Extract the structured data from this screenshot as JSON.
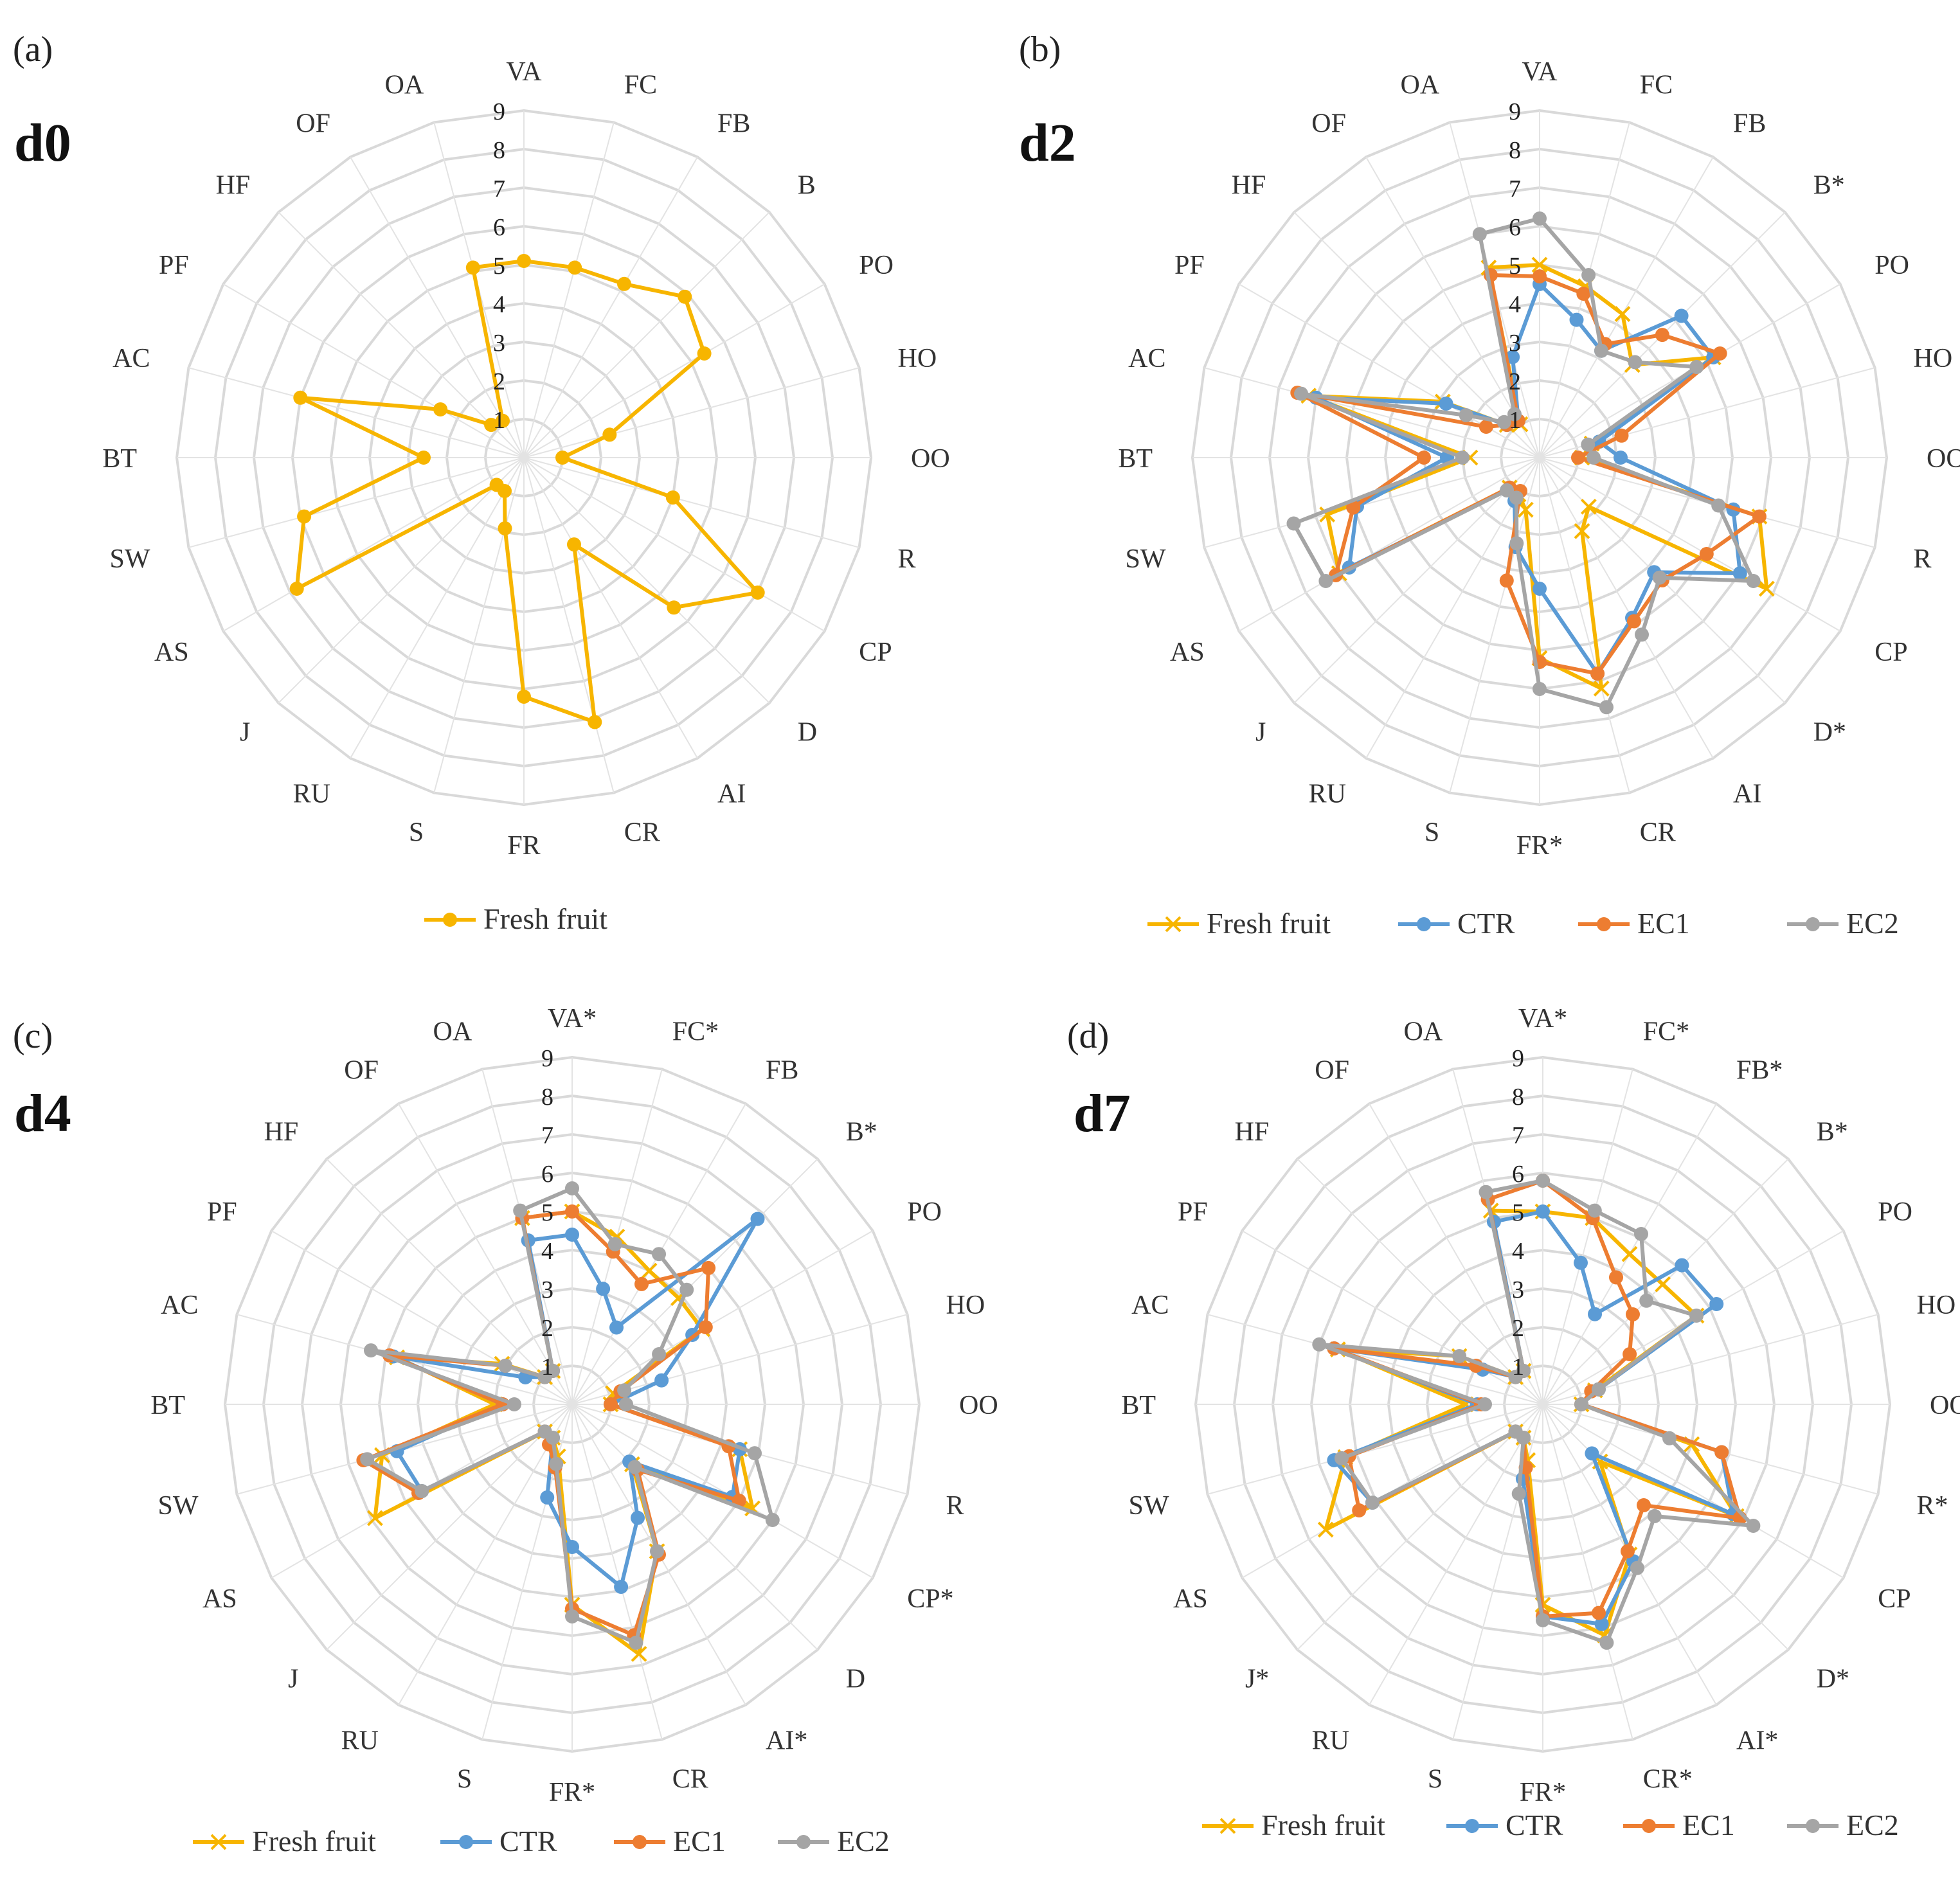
{
  "colors": {
    "Fresh fruit": "#F7B500",
    "CTR": "#5B9BD5",
    "EC1": "#ED7D31",
    "EC2": "#A5A5A5"
  },
  "chart_data": [
    {
      "type": "radar",
      "panel": "(a)",
      "title": "d0",
      "rmin": 1,
      "rmax": 9,
      "ticks": [
        "1",
        "2",
        "3",
        "4",
        "5",
        "6",
        "7",
        "8",
        "9"
      ],
      "categories": [
        "VA",
        "FC",
        "FB",
        "B",
        "PO",
        "HO",
        "OO",
        "R",
        "CP",
        "D",
        "AI",
        "CR",
        "FR",
        "S",
        "RU",
        "J",
        "AS",
        "SW",
        "BT",
        "AC",
        "PF",
        "HF",
        "OF",
        "OA"
      ],
      "series": [
        {
          "name": "Fresh fruit",
          "marker": "dot",
          "values": [
            5.1,
            5.1,
            5.2,
            5.9,
            5.4,
            2.3,
            1.0,
            4.0,
            7.0,
            5.5,
            2.6,
            7.1,
            6.2,
            1.9,
            1.0,
            1.0,
            6.8,
            5.9,
            2.6,
            6.0,
            2.5,
            1.2,
            1.1,
            5.1
          ]
        }
      ],
      "legend": [
        "Fresh fruit"
      ]
    },
    {
      "type": "radar",
      "panel": "(b)",
      "title": "d2",
      "rmin": 1,
      "rmax": 9,
      "ticks": [
        "1",
        "2",
        "3",
        "4",
        "5",
        "6",
        "7",
        "8",
        "9"
      ],
      "categories": [
        "VA",
        "FC",
        "FB",
        "B*",
        "PO",
        "HO",
        "OO",
        "R",
        "CP",
        "D*",
        "AI",
        "CR",
        "FR*",
        "S",
        "RU",
        "J",
        "AS",
        "SW",
        "BT",
        "AC",
        "PF",
        "HF",
        "OF",
        "OA"
      ],
      "series": [
        {
          "name": "Fresh fruit",
          "marker": "x",
          "values": [
            5.0,
            4.6,
            4.3,
            3.4,
            5.2,
            1.4,
            1.1,
            5.9,
            6.8,
            1.8,
            2.2,
            6.2,
            5.2,
            1.4,
            1.1,
            1.1,
            6.0,
            5.7,
            1.8,
            6.2,
            2.9,
            1.2,
            1.0,
            5.1
          ]
        },
        {
          "name": "CTR",
          "marker": "dot",
          "values": [
            4.5,
            3.7,
            3.2,
            5.2,
            5.2,
            1.6,
            2.1,
            5.2,
            6.0,
            4.2,
            4.8,
            5.8,
            3.4,
            2.4,
            1.3,
            1.2,
            5.7,
            4.9,
            2.4,
            6.0,
            2.8,
            1.2,
            1.1,
            2.7
          ]
        },
        {
          "name": "EC1",
          "marker": "dot",
          "values": [
            4.7,
            4.4,
            3.4,
            4.5,
            5.4,
            2.2,
            1.0,
            5.9,
            5.0,
            4.5,
            4.9,
            5.8,
            5.3,
            3.3,
            1.0,
            1.1,
            6.1,
            5.0,
            3.0,
            6.5,
            1.6,
            1.2,
            1.1,
            4.9
          ]
        },
        {
          "name": "EC2",
          "marker": "dot",
          "values": [
            6.2,
            4.9,
            3.2,
            3.5,
            4.7,
            1.3,
            1.4,
            4.8,
            6.4,
            4.4,
            5.3,
            6.7,
            6.0,
            2.3,
            1.2,
            1.2,
            6.4,
            6.6,
            2.0,
            6.4,
            2.2,
            1.3,
            1.3,
            6.0
          ]
        }
      ],
      "legend": [
        "Fresh fruit",
        "CTR",
        "EC1",
        "EC2"
      ]
    },
    {
      "type": "radar",
      "panel": "(c)",
      "title": "d4",
      "rmin": 1,
      "rmax": 9,
      "ticks": [
        "1",
        "2",
        "3",
        "4",
        "5",
        "6",
        "7",
        "8",
        "9"
      ],
      "categories": [
        "VA*",
        "FC*",
        "FB",
        "B*",
        "PO",
        "HO",
        "OO",
        "R",
        "CP*",
        "D",
        "AI*",
        "CR",
        "FR*",
        "S",
        "RU",
        "J",
        "AS",
        "SW",
        "BT",
        "AC",
        "PF",
        "HF",
        "OF",
        "OA"
      ],
      "series": [
        {
          "name": "Fresh fruit",
          "marker": "x",
          "values": [
            5.0,
            4.5,
            4.0,
            3.9,
            3.9,
            1.1,
            1.0,
            4.5,
            5.4,
            2.2,
            4.4,
            6.7,
            5.2,
            1.4,
            1.0,
            1.0,
            5.9,
            5.1,
            2.0,
            4.7,
            2.1,
            1.0,
            1.0,
            5.0
          ]
        },
        {
          "name": "CTR",
          "marker": "dot",
          "values": [
            4.4,
            3.1,
            2.3,
            6.8,
            3.6,
            2.4,
            1.0,
            4.5,
            4.8,
            2.1,
            3.4,
            4.9,
            3.7,
            2.5,
            1.0,
            1.0,
            4.5,
            4.7,
            1.8,
            4.8,
            1.4,
            1.0,
            1.0,
            4.4
          ]
        },
        {
          "name": "EC1",
          "marker": "dot",
          "values": [
            5.0,
            4.1,
            3.6,
            5.0,
            4.0,
            1.3,
            1.0,
            4.2,
            5.0,
            2.4,
            4.5,
            6.2,
            5.3,
            1.7,
            1.2,
            1.0,
            4.6,
            5.6,
            1.8,
            4.9,
            2.0,
            1.0,
            1.0,
            5.0
          ]
        },
        {
          "name": "EC2",
          "marker": "dot",
          "values": [
            5.6,
            4.3,
            4.5,
            4.2,
            2.6,
            1.4,
            1.4,
            4.9,
            6.0,
            2.3,
            4.4,
            6.4,
            5.5,
            1.6,
            1.0,
            1.0,
            4.5,
            5.5,
            1.5,
            5.4,
            2.0,
            1.0,
            1.0,
            5.2
          ]
        }
      ],
      "legend": [
        "Fresh fruit",
        "CTR",
        "EC1",
        "EC2"
      ]
    },
    {
      "type": "radar",
      "panel": "(d)",
      "title": "d7",
      "rmin": 1,
      "rmax": 9,
      "ticks": [
        "1",
        "2",
        "3",
        "4",
        "5",
        "6",
        "7",
        "8",
        "9"
      ],
      "categories": [
        "VA*",
        "FC*",
        "FB*",
        "B*",
        "PO",
        "HO",
        "OO",
        "R*",
        "CP",
        "D*",
        "AI*",
        "CR*",
        "FR*",
        "S",
        "RU",
        "J*",
        "AS",
        "SW",
        "BT",
        "AC",
        "PF",
        "HF",
        "OF",
        "OA"
      ],
      "series": [
        {
          "name": "Fresh fruit",
          "marker": "x",
          "values": [
            5.0,
            5.0,
            4.5,
            4.4,
            4.6,
            1.4,
            1.0,
            4.0,
            5.8,
            2.1,
            4.5,
            6.2,
            5.2,
            1.5,
            1.0,
            1.0,
            6.5,
            5.3,
            2.0,
            5.5,
            2.5,
            1.0,
            1.0,
            5.2
          ]
        },
        {
          "name": "CTR",
          "marker": "dot",
          "values": [
            5.0,
            3.8,
            2.7,
            5.1,
            5.2,
            1.5,
            1.0,
            4.8,
            5.7,
            1.8,
            4.7,
            5.9,
            5.5,
            2.0,
            1.0,
            1.0,
            5.1,
            5.6,
            1.7,
            5.6,
            1.8,
            1.0,
            1.0,
            4.9
          ]
        },
        {
          "name": "EC1",
          "marker": "dot",
          "values": [
            5.8,
            5.0,
            3.8,
            3.3,
            2.6,
            1.3,
            1.0,
            4.8,
            5.9,
            3.7,
            4.4,
            5.6,
            5.5,
            1.7,
            1.0,
            1.0,
            5.5,
            5.2,
            1.6,
            5.6,
            2.0,
            1.0,
            1.0,
            5.5
          ]
        },
        {
          "name": "EC2",
          "marker": "dot",
          "values": [
            5.8,
            5.2,
            5.1,
            3.8,
            4.6,
            1.5,
            1.0,
            3.4,
            6.3,
            4.1,
            4.9,
            6.4,
            5.6,
            2.4,
            1.0,
            1.0,
            5.1,
            5.4,
            1.5,
            6.0,
            2.5,
            1.0,
            1.0,
            5.7
          ]
        }
      ],
      "legend": [
        "Fresh fruit",
        "CTR",
        "EC1",
        "EC2"
      ]
    }
  ]
}
